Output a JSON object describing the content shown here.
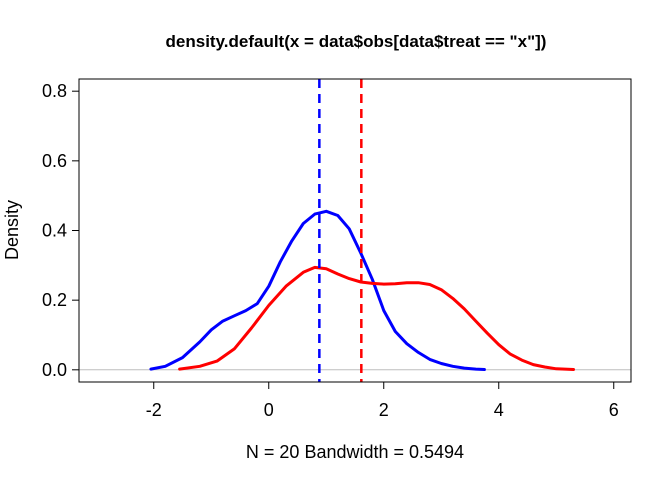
{
  "chart_data": {
    "type": "line",
    "title": "density.default(x = data$obs[data$treat == \"x\"])",
    "xlabel": "N = 20   Bandwidth = 0.5494",
    "ylabel": "Density",
    "xlim": [
      -3.3,
      6.3
    ],
    "ylim": [
      -0.035,
      0.835
    ],
    "xticks": [
      -2,
      0,
      2,
      4,
      6
    ],
    "xtick_labels": [
      "-2",
      "0",
      "2",
      "4",
      "6"
    ],
    "yticks": [
      0.0,
      0.2,
      0.4,
      0.6,
      0.8
    ],
    "ytick_labels": [
      "0.0",
      "0.2",
      "0.4",
      "0.6",
      "0.8"
    ],
    "grid": false,
    "baseline": {
      "y": 0,
      "color": "#bebebe"
    },
    "series": [
      {
        "color": "#0000ff",
        "x": [
          -2.05,
          -1.8,
          -1.5,
          -1.2,
          -1.0,
          -0.8,
          -0.6,
          -0.4,
          -0.2,
          0.0,
          0.2,
          0.4,
          0.6,
          0.8,
          1.0,
          1.2,
          1.4,
          1.6,
          1.8,
          2.0,
          2.2,
          2.4,
          2.6,
          2.8,
          3.0,
          3.2,
          3.4,
          3.6,
          3.75
        ],
        "y": [
          0.002,
          0.01,
          0.035,
          0.08,
          0.115,
          0.14,
          0.155,
          0.17,
          0.19,
          0.24,
          0.31,
          0.37,
          0.42,
          0.447,
          0.455,
          0.443,
          0.405,
          0.335,
          0.26,
          0.17,
          0.11,
          0.075,
          0.05,
          0.03,
          0.018,
          0.01,
          0.005,
          0.002,
          0.001
        ]
      },
      {
        "color": "#ff0000",
        "x": [
          -1.55,
          -1.2,
          -0.9,
          -0.6,
          -0.3,
          0.0,
          0.3,
          0.6,
          0.8,
          1.0,
          1.2,
          1.4,
          1.6,
          1.8,
          2.0,
          2.2,
          2.4,
          2.6,
          2.8,
          3.0,
          3.2,
          3.4,
          3.6,
          3.8,
          4.0,
          4.2,
          4.4,
          4.6,
          4.8,
          5.0,
          5.3
        ],
        "y": [
          0.002,
          0.01,
          0.025,
          0.06,
          0.12,
          0.185,
          0.24,
          0.28,
          0.294,
          0.29,
          0.275,
          0.262,
          0.252,
          0.248,
          0.246,
          0.247,
          0.25,
          0.25,
          0.245,
          0.23,
          0.205,
          0.175,
          0.14,
          0.105,
          0.072,
          0.045,
          0.028,
          0.015,
          0.008,
          0.003,
          0.001
        ]
      }
    ],
    "vlines": [
      {
        "x": 0.88,
        "color": "#0000ff",
        "style": "dashed"
      },
      {
        "x": 1.61,
        "color": "#ff0000",
        "style": "dashed"
      }
    ]
  }
}
